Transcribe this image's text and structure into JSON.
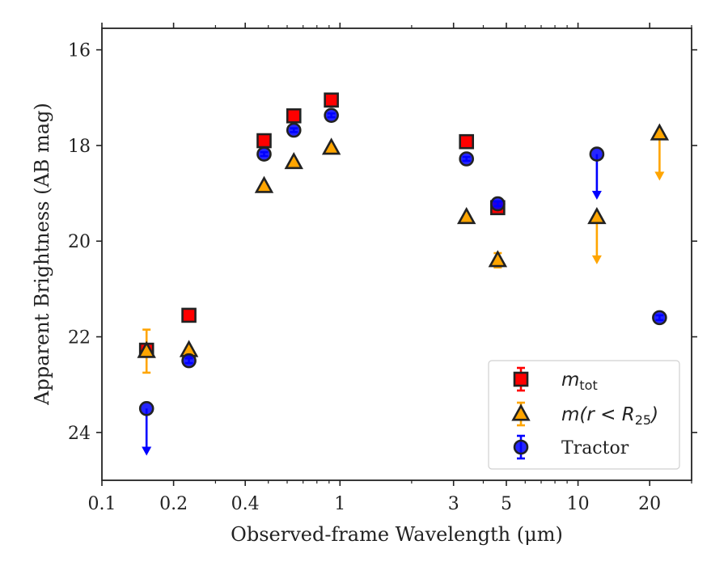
{
  "chart_data": {
    "type": "scatter",
    "xlabel": "Observed-frame Wavelength (μm)",
    "ylabel": "Apparent Brightness (AB mag)",
    "xscale": "log",
    "xlim": [
      0.1,
      30
    ],
    "ylim": [
      25,
      15.55
    ],
    "y_inverted": true,
    "grid": false,
    "legend_position": "lower-right",
    "x_ticks": [
      0.1,
      0.2,
      0.4,
      1,
      3,
      5,
      10,
      20
    ],
    "x_tick_labels": [
      "0.1",
      "0.2",
      "0.4",
      "1",
      "3",
      "5",
      "10",
      "20"
    ],
    "y_ticks": [
      16,
      18,
      20,
      22,
      24
    ],
    "y_tick_labels": [
      "16",
      "18",
      "20",
      "22",
      "24"
    ],
    "series": [
      {
        "name_main": "m",
        "name_sub": "tot",
        "marker": "square",
        "color": "#ff0000",
        "edge_color": "#222222",
        "points": [
          {
            "x": 0.154,
            "y": 22.28,
            "err": 0.05
          },
          {
            "x": 0.232,
            "y": 21.55,
            "err": 0.05
          },
          {
            "x": 0.48,
            "y": 17.9,
            "err": 0.04
          },
          {
            "x": 0.64,
            "y": 17.38,
            "err": 0.04
          },
          {
            "x": 0.92,
            "y": 17.05,
            "err": 0.04
          },
          {
            "x": 3.4,
            "y": 17.92,
            "err": 0.04
          },
          {
            "x": 4.6,
            "y": 19.3,
            "err": 0.1
          }
        ]
      },
      {
        "name_main": "m(r < R",
        "name_sub": "25",
        "name_end": ")",
        "marker": "triangle",
        "color": "#ffa500",
        "edge_color": "#222222",
        "points": [
          {
            "x": 0.154,
            "y": 22.3,
            "err": 0.45
          },
          {
            "x": 0.232,
            "y": 22.28,
            "err": 0.05
          },
          {
            "x": 0.48,
            "y": 18.85,
            "err": 0.04
          },
          {
            "x": 0.64,
            "y": 18.35,
            "err": 0.04
          },
          {
            "x": 0.92,
            "y": 18.05,
            "err": 0.04
          },
          {
            "x": 3.4,
            "y": 19.5,
            "err": 0.04
          },
          {
            "x": 4.6,
            "y": 20.4,
            "err": 0.15
          },
          {
            "x": 12.0,
            "y": 19.5,
            "upper_limit": true,
            "arrow_to": 20.45
          },
          {
            "x": 22.0,
            "y": 17.75,
            "upper_limit": true,
            "arrow_to": 18.7
          }
        ]
      },
      {
        "name_main": "Tractor",
        "marker": "circle",
        "color": "#0000ff",
        "edge_color": "#222222",
        "points": [
          {
            "x": 0.154,
            "y": 23.5,
            "upper_limit": true,
            "arrow_to": 24.45
          },
          {
            "x": 0.232,
            "y": 22.5,
            "err": 0.05
          },
          {
            "x": 0.48,
            "y": 18.18,
            "err": 0.04
          },
          {
            "x": 0.64,
            "y": 17.68,
            "err": 0.04
          },
          {
            "x": 0.92,
            "y": 17.37,
            "err": 0.04
          },
          {
            "x": 3.4,
            "y": 18.28,
            "err": 0.04
          },
          {
            "x": 4.6,
            "y": 19.22,
            "err": 0.05
          },
          {
            "x": 12.0,
            "y": 18.18,
            "upper_limit": true,
            "arrow_to": 19.1
          },
          {
            "x": 22.0,
            "y": 21.6,
            "err": 0.05
          }
        ]
      }
    ]
  }
}
